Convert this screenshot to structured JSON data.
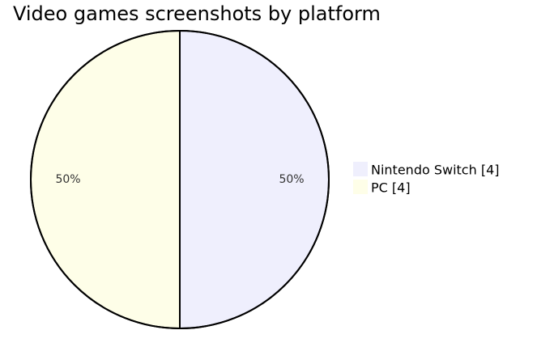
{
  "chart_data": {
    "type": "pie",
    "title": "Video games screenshots by platform",
    "categories": [
      "Nintendo Switch",
      "PC"
    ],
    "values": [
      4,
      4
    ],
    "percent_labels": [
      "50%",
      "50%"
    ],
    "legend_labels": [
      "Nintendo Switch [4]",
      "PC [4]"
    ],
    "colors": [
      "#efeffd",
      "#fefee8"
    ],
    "outline_color": "#000000",
    "legend_position": "right",
    "start_direction": "top",
    "direction": "clockwise"
  }
}
